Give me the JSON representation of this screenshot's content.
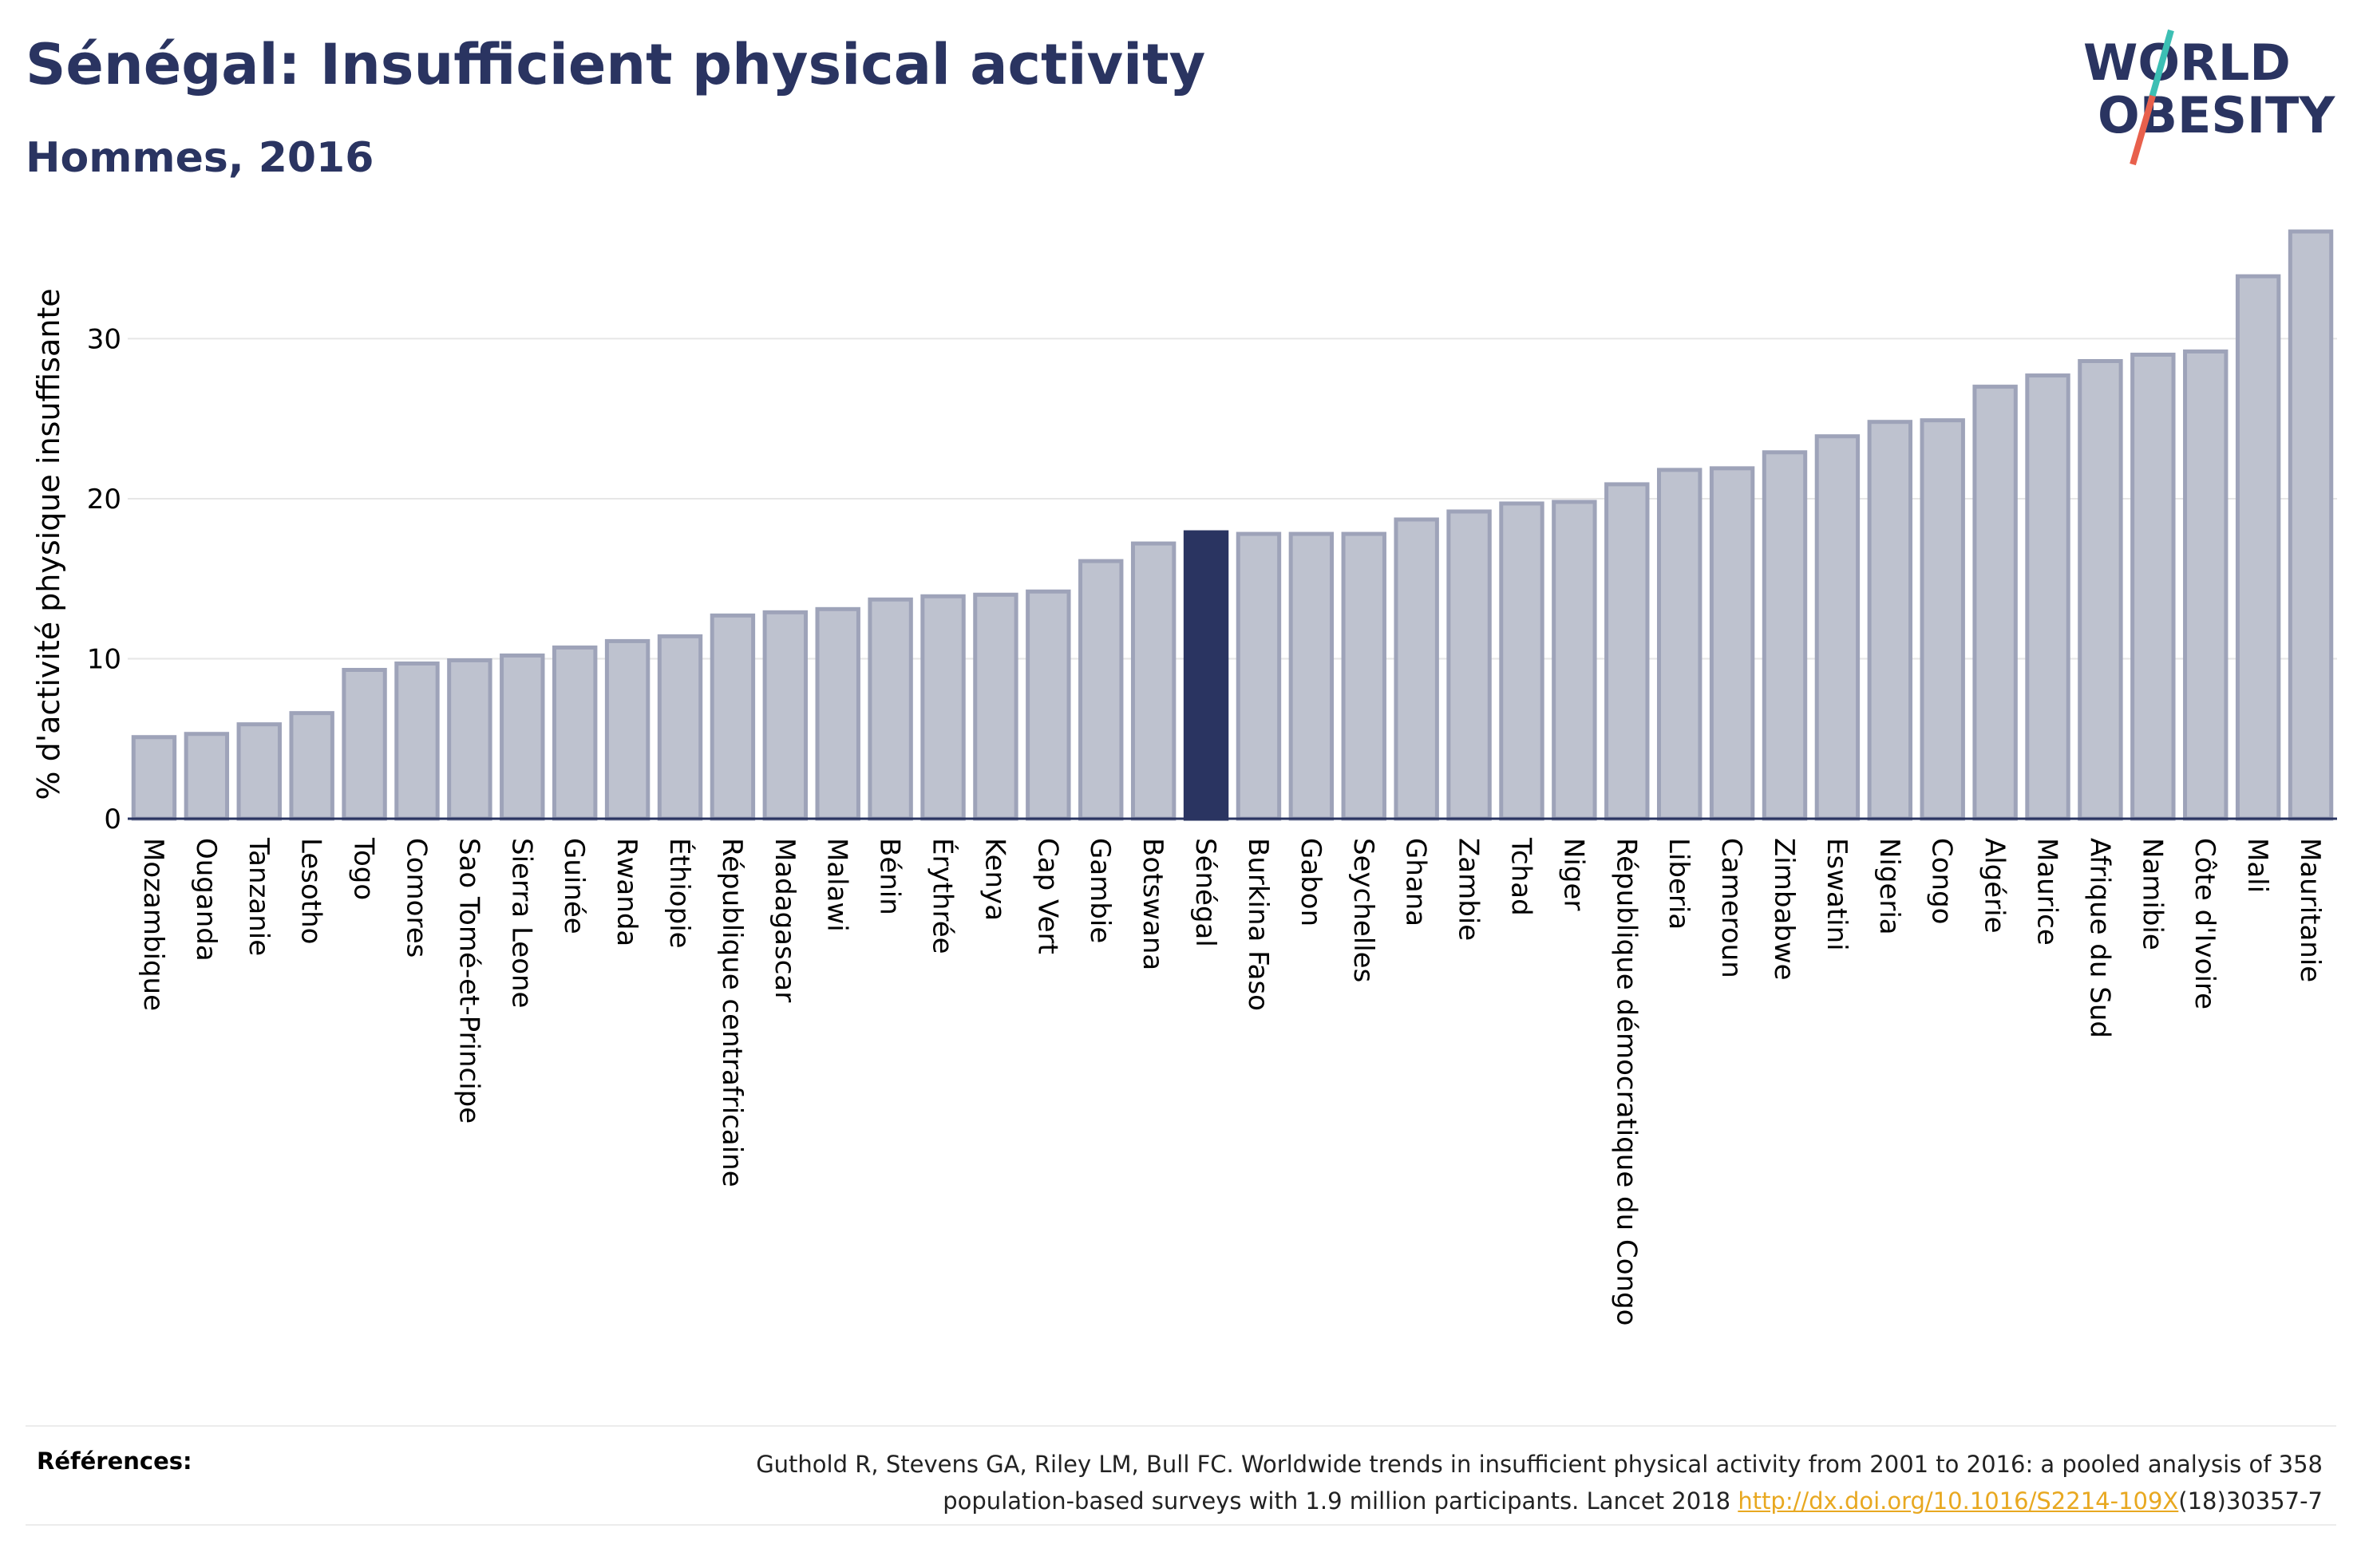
{
  "header": {
    "title": "Sénégal: Insufficient physical activity",
    "subtitle": "Hommes, 2016"
  },
  "logo": {
    "line1": "WORLD",
    "line2": "OBESITY",
    "text_color": "#2a3461",
    "slash_top_color": "#3cbfb4",
    "slash_bottom_color": "#e8604c"
  },
  "colors": {
    "bar_fill": "#bec2cf",
    "bar_stroke": "#9ea3b9",
    "highlight_fill": "#2a3461",
    "axis": "#2a3461",
    "grid": "#e6e6e6"
  },
  "chart_data": {
    "type": "bar",
    "ylabel": "% d'activité physique insuffisante",
    "ylim": [
      0,
      38
    ],
    "yticks": [
      0,
      10,
      20,
      30
    ],
    "grid": true,
    "highlight": "Sénégal",
    "categories": [
      "Mozambique",
      "Ouganda",
      "Tanzanie",
      "Lesotho",
      "Togo",
      "Comores",
      "Sao Tomé-et-Principe",
      "Sierra Leone",
      "Guinée",
      "Rwanda",
      "Éthiopie",
      "République centrafricaine",
      "Madagascar",
      "Malawi",
      "Bénin",
      "Érythrée",
      "Kenya",
      "Cap Vert",
      "Gambie",
      "Botswana",
      "Sénégal",
      "Burkina Faso",
      "Gabon",
      "Seychelles",
      "Ghana",
      "Zambie",
      "Tchad",
      "Niger",
      "République démocratique du Congo",
      "Liberia",
      "Cameroun",
      "Zimbabwe",
      "Eswatini",
      "Nigeria",
      "Congo",
      "Algérie",
      "Maurice",
      "Afrique du Sud",
      "Namibie",
      "Côte d'Ivoire",
      "Mali",
      "Mauritanie"
    ],
    "values": [
      5.1,
      5.3,
      5.9,
      6.6,
      9.3,
      9.7,
      9.9,
      10.2,
      10.7,
      11.1,
      11.4,
      12.7,
      12.9,
      13.1,
      13.7,
      13.9,
      14.0,
      14.2,
      16.1,
      17.2,
      17.9,
      17.8,
      17.8,
      17.8,
      18.7,
      19.2,
      19.7,
      19.8,
      20.9,
      21.8,
      21.9,
      22.9,
      23.9,
      24.8,
      24.9,
      27.0,
      27.7,
      28.6,
      29.0,
      29.2,
      33.9,
      36.7
    ]
  },
  "references": {
    "label": "Références:",
    "text_line1": "Guthold R, Stevens GA, Riley LM, Bull FC. Worldwide trends in insufficient physical activity from 2001 to 2016: a pooled analysis of 358",
    "text_line2_before": "population-based surveys with 1.9 million participants. Lancet 2018 ",
    "link": "http://dx.doi.org/10.1016/S2214-109X",
    "text_line2_after": "(18)30357-7"
  }
}
